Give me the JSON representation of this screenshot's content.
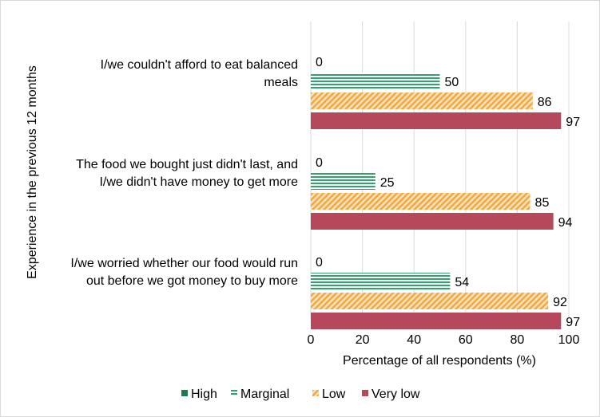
{
  "chart_data": {
    "type": "bar",
    "orientation": "horizontal",
    "title": "",
    "xlabel": "Percentage of all respondents (%)",
    "ylabel": "Experience in the previous 12 months",
    "xlim": [
      0,
      100
    ],
    "x_ticks": [
      0,
      20,
      40,
      60,
      80,
      100
    ],
    "grid": "vertical",
    "legend_position": "bottom",
    "categories": [
      "I/we couldn't afford to eat balanced meals",
      "The food we bought just didn't last, and I/we didn't have money to get more",
      "I/we worried whether our food would run out before we got money to buy more"
    ],
    "series": [
      {
        "name": "High",
        "values": [
          0,
          0,
          0
        ],
        "color": "#1e7a55",
        "pattern": "solid"
      },
      {
        "name": "Marginal",
        "values": [
          50,
          25,
          54
        ],
        "color": "#2fa36b",
        "pattern": "horizontal-stripes"
      },
      {
        "name": "Low",
        "values": [
          86,
          85,
          92
        ],
        "color": "#f2a840",
        "pattern": "diagonal-hatch"
      },
      {
        "name": "Very low",
        "values": [
          97,
          94,
          97
        ],
        "color": "#b5495b",
        "pattern": "solid"
      }
    ]
  }
}
